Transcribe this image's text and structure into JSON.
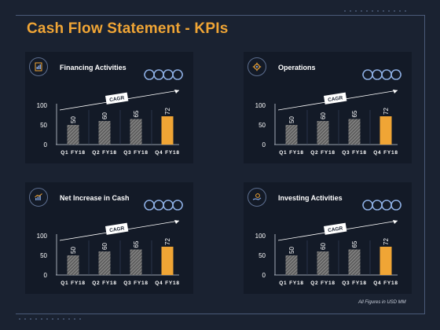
{
  "title": "Cash Flow Statement - KPIs",
  "footnote": "All Figures in USD MM",
  "colors": {
    "accent": "#f0a535",
    "background": "#1a2231",
    "panel": "#131a27",
    "bar_hatch": "#9a9a9a",
    "text": "#ffffff"
  },
  "chart_data": [
    {
      "type": "bar",
      "title": "Financing Activities",
      "icon": "document-chart-icon",
      "categories": [
        "Q1 FY18",
        "Q2 FY18",
        "Q3 FY18",
        "Q4 FY18"
      ],
      "values": [
        50,
        60,
        65,
        72
      ],
      "highlight_index": 3,
      "ylim": [
        0,
        100
      ],
      "yticks": [
        0,
        50,
        100
      ],
      "annotation": "CAGR",
      "grid": false,
      "legend": "none"
    },
    {
      "type": "bar",
      "title": "Operations",
      "icon": "gear-icon",
      "categories": [
        "Q1 FY18",
        "Q2 FY18",
        "Q3 FY18",
        "Q4 FY18"
      ],
      "values": [
        50,
        60,
        65,
        72
      ],
      "highlight_index": 3,
      "ylim": [
        0,
        100
      ],
      "yticks": [
        0,
        50,
        100
      ],
      "annotation": "CAGR",
      "grid": false,
      "legend": "none"
    },
    {
      "type": "bar",
      "title": "Net Increase in Cash",
      "icon": "growth-chart-icon",
      "categories": [
        "Q1 FY18",
        "Q2 FY18",
        "Q3 FY18",
        "Q4 FY18"
      ],
      "values": [
        50,
        60,
        65,
        72
      ],
      "highlight_index": 3,
      "ylim": [
        0,
        100
      ],
      "yticks": [
        0,
        50,
        100
      ],
      "annotation": "CAGR",
      "grid": false,
      "legend": "none"
    },
    {
      "type": "bar",
      "title": "Investing Activities",
      "icon": "hand-coin-icon",
      "categories": [
        "Q1 FY18",
        "Q2 FY18",
        "Q3 FY18",
        "Q4 FY18"
      ],
      "values": [
        50,
        60,
        65,
        72
      ],
      "highlight_index": 3,
      "ylim": [
        0,
        100
      ],
      "yticks": [
        0,
        50,
        100
      ],
      "annotation": "CAGR",
      "grid": false,
      "legend": "none"
    }
  ]
}
